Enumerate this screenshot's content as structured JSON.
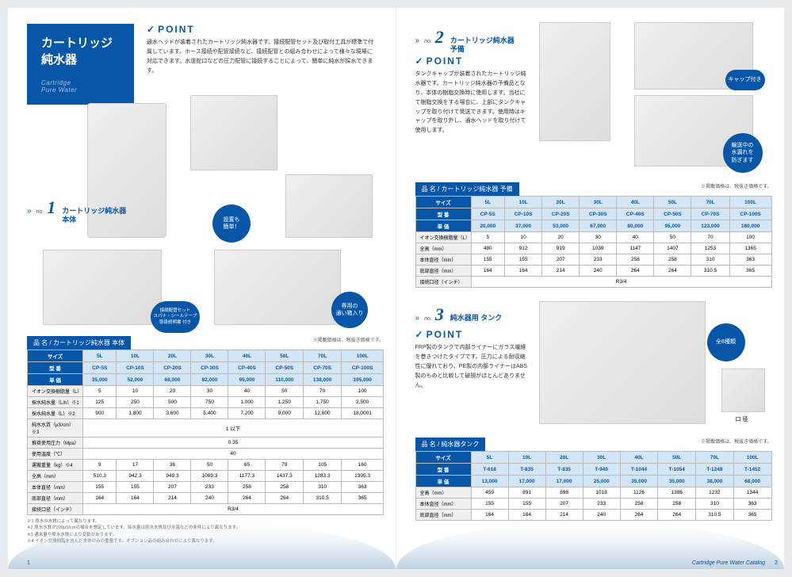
{
  "title": "カートリッジ\n純水器",
  "subtitle_en": "Cartridge\nPure Water",
  "sec1": {
    "no": "no.",
    "num": "1",
    "label": "カートリッジ純水器\n本体"
  },
  "sec2": {
    "no": "no.",
    "num": "2",
    "label": "カートリッジ純水器\n予備"
  },
  "sec3": {
    "no": "no.",
    "num": "3",
    "label": "純水器用 タンク"
  },
  "point": "POINT",
  "p1_text": "通水ヘッドが装着されたカートリッジ純水器です。接続配管セット及び取付工具が標準で付属しています。ホース接続や配管接続など、接続配管との組み合わせによって様々な現場に対応できます。水道蛇口などの圧力配管に接続することによって、簡単に純水が採水できます。",
  "p2_text": "タンクキャップが装着されたカートリッジ純水器です。カートリッジ純水器の予備品となり、本体の樹脂交換時に使用します。当社にて樹脂交換をする場合に、上部にタンクキャップを取り付けて発送できます。使用時はキャップを取り外し、通水ヘッドを取り付けて使用します。",
  "p3_text": "FRP製のタンクで内部ライナーにガラス繊維を巻きつけたタイプです。圧力による耐収縮性に優れており、PE製の内部ライナーはABS製のものと比較して破損がほとんどありません。",
  "bubble1": "設置も\n簡単！",
  "bubble2": "接続配管セット\nスパナ・シールテープ\n取扱説明書 付き",
  "bubble3": "専用の\n通い箱入り",
  "bubble4": "キャップ付き",
  "bubble5": "輸送中の\n水漏れを\n防ぎます",
  "bubble6": "全8種類",
  "caption1": "口 径",
  "t1": {
    "title": "品 名 / カートリッジ純水器 本体",
    "note": "※掲載価格は、税抜き価格です。",
    "sizes": [
      "5L",
      "10L",
      "20L",
      "30L",
      "40L",
      "50L",
      "70L",
      "100L"
    ],
    "models": [
      "CP-5S",
      "CP-10S",
      "CP-20S",
      "CP-30S",
      "CP-40S",
      "CP-50S",
      "CP-70S",
      "CP-100S"
    ],
    "prices": [
      "35,000",
      "52,000",
      "68,000",
      "82,000",
      "95,000",
      "110,000",
      "138,000",
      "195,000"
    ],
    "rows": [
      {
        "l": "イオン交換樹脂量（L）",
        "v": [
          "5",
          "10",
          "20",
          "30",
          "40",
          "50",
          "70",
          "100"
        ]
      },
      {
        "l": "採水純水量（L/h）※1",
        "v": [
          "125",
          "250",
          "500",
          "750",
          "1,000",
          "1,250",
          "1,750",
          "2,500"
        ]
      },
      {
        "l": "採水純水量（L）※2",
        "v": [
          "900",
          "1,800",
          "3,600",
          "5,400",
          "7,200",
          "9,000",
          "12,600",
          "18,0001"
        ]
      },
      {
        "l": "純水水質（μS/cm）※3",
        "v": [
          "1 以下"
        ],
        "span": 8
      },
      {
        "l": "推奨使用圧力（Mpa）",
        "v": [
          "0.35"
        ],
        "span": 8
      },
      {
        "l": "使用温度（℃）",
        "v": [
          "40"
        ],
        "span": 8
      },
      {
        "l": "運搬重量（kg）※4",
        "v": [
          "9",
          "17",
          "36",
          "50",
          "65",
          "79",
          "105",
          "160"
        ]
      },
      {
        "l": "全高（mm）",
        "v": [
          "510.3",
          "942.3",
          "949.3",
          "1069.3",
          "1177.3",
          "1437.3",
          "1283.3",
          "1395.3"
        ]
      },
      {
        "l": "本体直径（mm）",
        "v": [
          "155",
          "155",
          "207",
          "233",
          "258",
          "258",
          "310",
          "363"
        ]
      },
      {
        "l": "底部直径（mm）",
        "v": [
          "164",
          "164",
          "214",
          "240",
          "264",
          "264",
          "310.5",
          "365"
        ]
      },
      {
        "l": "接続口径（インチ）",
        "v": [
          "R3/4"
        ],
        "span": 8
      }
    ],
    "notes": "※1 原水の水質によって異なります。\n※2 原水水質が200μS/cmの場合を想定しています。採水量は原水水質及び水温などの条件により異なります。\n※3 通水量や原水水質により変動があります。\n※4 イオン交換樹脂を含んだ本体のみの重量です。オプション品の組み合わせにより異なります。"
  },
  "t2": {
    "title": "品 名 / カートリッジ純水器 予備",
    "note": "※掲載価格は、税抜き価格です。",
    "sizes": [
      "5L",
      "10L",
      "20L",
      "30L",
      "40L",
      "50L",
      "70L",
      "100L"
    ],
    "models": [
      "CP-5S",
      "CP-10S",
      "CP-20S",
      "CP-30S",
      "CP-40S",
      "CP-50S",
      "CP-70S",
      "CP-100S"
    ],
    "prices": [
      "20,000",
      "37,000",
      "53,000",
      "67,000",
      "80,000",
      "95,000",
      "123,000",
      "180,000"
    ],
    "rows": [
      {
        "l": "イオン交換樹脂量（L）",
        "v": [
          "5",
          "10",
          "20",
          "30",
          "40",
          "50",
          "70",
          "100"
        ]
      },
      {
        "l": "全高（mm）",
        "v": [
          "480",
          "912",
          "919",
          "1039",
          "1147",
          "1407",
          "1253",
          "1365"
        ]
      },
      {
        "l": "本体直径（mm）",
        "v": [
          "155",
          "155",
          "207",
          "233",
          "258",
          "258",
          "310",
          "363"
        ]
      },
      {
        "l": "底部直径（mm）",
        "v": [
          "164",
          "164",
          "214",
          "240",
          "264",
          "264",
          "310.5",
          "365"
        ]
      },
      {
        "l": "接続口径（インチ）",
        "v": [
          "R3/4"
        ],
        "span": 8
      }
    ]
  },
  "t3": {
    "title": "品 名 / 純水器タンク",
    "note": "※掲載価格は、税抜き価格です。",
    "sizes": [
      "5L",
      "10L",
      "20L",
      "30L",
      "40L",
      "50L",
      "70L",
      "100L"
    ],
    "models": [
      "T-618",
      "T-835",
      "T-835",
      "T-940",
      "T-1044",
      "T-1054",
      "T-1248",
      "T-1452"
    ],
    "prices": [
      "13,000",
      "17,000",
      "17,000",
      "25,000",
      "35,000",
      "35,000",
      "38,000",
      "68,000"
    ],
    "rows": [
      {
        "l": "全高（mm）",
        "v": [
          "459",
          "891",
          "898",
          "1018",
          "1126",
          "1386",
          "1232",
          "1344"
        ]
      },
      {
        "l": "本体直径（mm）",
        "v": [
          "155",
          "155",
          "207",
          "233",
          "258",
          "258",
          "310",
          "363"
        ]
      },
      {
        "l": "底部直径（mm）",
        "v": [
          "164",
          "164",
          "214",
          "240",
          "264",
          "264",
          "310.5",
          "365"
        ]
      }
    ]
  },
  "h": {
    "size": "サイズ",
    "model": "型 番",
    "price": "単 価"
  },
  "pg1": "1",
  "pg2": "2",
  "footer_text": "Cartridge Pure Water Catalog"
}
